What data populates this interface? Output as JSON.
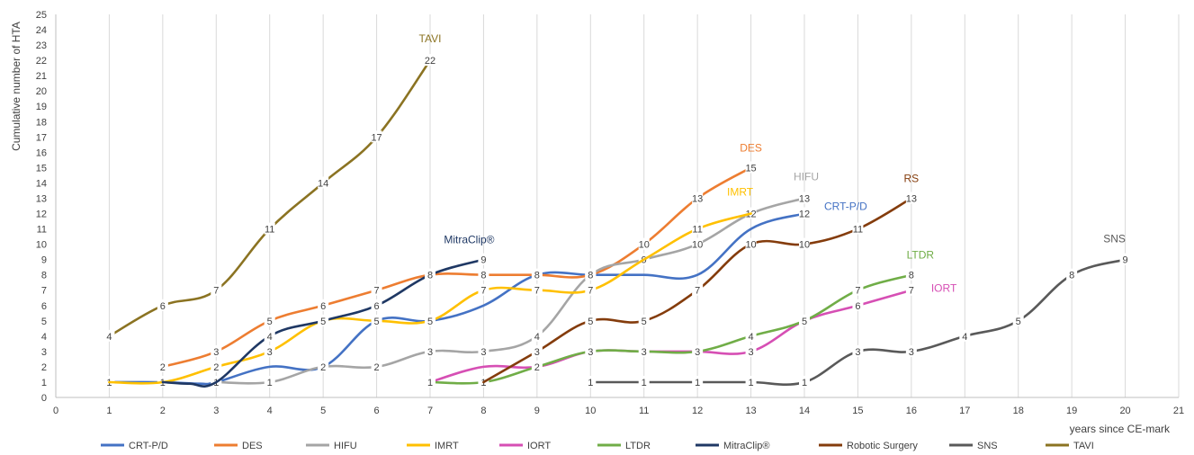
{
  "chart_data": {
    "type": "line",
    "title": "",
    "xlabel": "years since CE-mark",
    "ylabel": "Cumulative number of HTA",
    "xlim": [
      0,
      21
    ],
    "ylim": [
      0,
      25
    ],
    "x_ticks": [
      "0",
      "1",
      "2",
      "3",
      "4",
      "5",
      "6",
      "7",
      "8",
      "9",
      "10",
      "11",
      "12",
      "13",
      "14",
      "15",
      "16",
      "17",
      "18",
      "19",
      "20",
      "21"
    ],
    "y_ticks": [
      "0",
      "1",
      "2",
      "3",
      "4",
      "5",
      "6",
      "7",
      "8",
      "9",
      "10",
      "11",
      "12",
      "13",
      "14",
      "15",
      "16",
      "17",
      "18",
      "19",
      "20",
      "21",
      "22",
      "23",
      "24",
      "25"
    ],
    "grid": "vertical",
    "legend": "bottom",
    "series": [
      {
        "name": "CRT-P/D",
        "color": "#4472C4",
        "end_label": "CRT-P/D",
        "x": [
          1,
          2,
          2.7,
          3,
          4,
          5,
          6,
          7,
          8,
          9,
          10,
          11,
          12,
          13,
          14
        ],
        "y": [
          1,
          1,
          0.9,
          1,
          2,
          2,
          5,
          5,
          6,
          8,
          8,
          8,
          8,
          11,
          12
        ],
        "labels": [
          "1",
          "1",
          "",
          "",
          "",
          "",
          "",
          "",
          "",
          "",
          "",
          "",
          "",
          "",
          "12"
        ]
      },
      {
        "name": "DES",
        "color": "#ED7D31",
        "end_label": "DES",
        "x": [
          2,
          3,
          4,
          5,
          6,
          7,
          8,
          9,
          10,
          11,
          12,
          13
        ],
        "y": [
          2,
          3,
          5,
          6,
          7,
          8,
          8,
          8,
          8,
          10,
          13,
          15
        ],
        "labels": [
          "2",
          "3",
          "5",
          "6",
          "7",
          "8",
          "8",
          "8",
          "8",
          "10",
          "13",
          "15"
        ]
      },
      {
        "name": "HIFU",
        "color": "#A5A5A5",
        "end_label": "HIFU",
        "x": [
          3,
          4,
          5,
          6,
          7,
          8,
          9,
          10,
          11,
          12,
          13,
          14
        ],
        "y": [
          1,
          1,
          2,
          2,
          3,
          3,
          4,
          8,
          9,
          10,
          12,
          13
        ],
        "labels": [
          "1",
          "1",
          "2",
          "2",
          "3",
          "3",
          "4",
          "8",
          "9",
          "10",
          "12",
          "13"
        ]
      },
      {
        "name": "IMRT",
        "color": "#FFC000",
        "end_label": "IMRT",
        "x": [
          1,
          2,
          3,
          4,
          5,
          6,
          7,
          8,
          9,
          10,
          11,
          12,
          13
        ],
        "y": [
          1,
          1,
          2,
          3,
          5,
          5,
          5,
          7,
          7,
          7,
          9,
          11,
          12
        ],
        "labels": [
          "",
          "",
          "2",
          "3",
          "",
          "5",
          "5",
          "7",
          "7",
          "7",
          "",
          "11",
          ""
        ]
      },
      {
        "name": "IORT",
        "color": "#D64FB4",
        "end_label": "IORT",
        "x": [
          7,
          8,
          9,
          10,
          11,
          12,
          13,
          14,
          15,
          16
        ],
        "y": [
          1,
          2,
          2,
          3,
          3,
          3,
          3,
          5,
          6,
          7
        ],
        "labels": [
          "",
          "",
          "",
          "",
          "",
          "",
          "3",
          "",
          "6",
          "7"
        ]
      },
      {
        "name": "LTDR",
        "color": "#70AD47",
        "end_label": "LTDR",
        "x": [
          7,
          8,
          9,
          10,
          11,
          12,
          13,
          14,
          15,
          16
        ],
        "y": [
          1,
          1,
          2,
          3,
          3,
          3,
          4,
          5,
          7,
          8
        ],
        "labels": [
          "1",
          "1",
          "2",
          "3",
          "3",
          "3",
          "4",
          "5",
          "7",
          "8"
        ]
      },
      {
        "name": "MitraClip®",
        "color": "#1F3864",
        "end_label": "MitraClip®",
        "x": [
          2,
          2.5,
          3,
          4,
          5,
          6,
          7,
          8
        ],
        "y": [
          1,
          0.9,
          1,
          4,
          5,
          6,
          8,
          9
        ],
        "labels": [
          "",
          "",
          "",
          "4",
          "5",
          "6",
          "8",
          "9"
        ]
      },
      {
        "name": "Robotic Surgery",
        "color": "#843C0C",
        "end_label": "RS",
        "x": [
          8,
          9,
          10,
          11,
          12,
          13,
          14,
          15,
          16
        ],
        "y": [
          1,
          3,
          5,
          5,
          7,
          10,
          10,
          11,
          13
        ],
        "labels": [
          "",
          "3",
          "5",
          "5",
          "7",
          "10",
          "10",
          "11",
          "13"
        ]
      },
      {
        "name": "SNS",
        "color": "#595959",
        "end_label": "SNS",
        "x": [
          10,
          11,
          12,
          13,
          14,
          15,
          16,
          17,
          18,
          19,
          20
        ],
        "y": [
          1,
          1,
          1,
          1,
          1,
          3,
          3,
          4,
          5,
          8,
          9
        ],
        "labels": [
          "1",
          "1",
          "1",
          "1",
          "1",
          "3",
          "3",
          "4",
          "5",
          "8",
          "9"
        ]
      },
      {
        "name": "TAVI",
        "color": "#8B7322",
        "end_label": "TAVI",
        "x": [
          1,
          2,
          3,
          4,
          5,
          6,
          7
        ],
        "y": [
          4,
          6,
          7,
          11,
          14,
          17,
          22
        ],
        "labels": [
          "4",
          "6",
          "7",
          "11",
          "14",
          "17",
          "22"
        ]
      }
    ]
  }
}
